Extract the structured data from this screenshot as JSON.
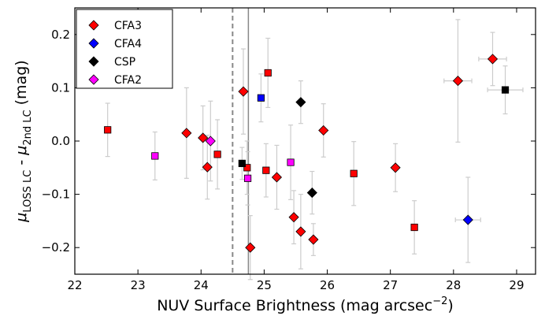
{
  "chart_data": {
    "type": "scatter",
    "xlabel_main": "NUV Surface Brightness (mag arcsec",
    "xlabel_exp": "−2",
    "xlabel_end": ")",
    "ylabel_mu": "μ",
    "ylabel_sub1": "LOSS LC",
    "ylabel_mid": " - ",
    "ylabel_sub2": "2nd LC",
    "ylabel_unit": " (mag)",
    "xlim": [
      22,
      29.3
    ],
    "ylim": [
      -0.25,
      0.25
    ],
    "xticks": [
      "22",
      "23",
      "24",
      "25",
      "26",
      "27",
      "28",
      "29"
    ],
    "yticks": [
      "−0.2",
      "−0.1",
      "0.0",
      "0.1",
      "0.2"
    ],
    "ytick_values": [
      -0.2,
      -0.1,
      0.0,
      0.1,
      0.2
    ],
    "vlines": [
      {
        "x": 24.5,
        "style": "dashed",
        "color": "#888888"
      },
      {
        "x": 24.75,
        "style": "solid",
        "color": "#888888"
      }
    ],
    "legend": [
      {
        "label": "CFA3",
        "color": "#ff0000"
      },
      {
        "label": "CFA4",
        "color": "#0000ff"
      },
      {
        "label": "CSP",
        "color": "#000000"
      },
      {
        "label": "CFA2",
        "color": "#ff00ff"
      }
    ],
    "series": [
      {
        "name": "CFA3",
        "color": "#ff0000",
        "points": [
          {
            "x": 22.52,
            "y": 0.021,
            "yerr": 0.05,
            "marker": "square"
          },
          {
            "x": 23.77,
            "y": 0.015,
            "yerr": 0.085,
            "marker": "diamond"
          },
          {
            "x": 24.03,
            "y": 0.006,
            "yerr": 0.06,
            "marker": "diamond"
          },
          {
            "x": 24.1,
            "y": -0.049,
            "yerr": 0.06,
            "marker": "diamond"
          },
          {
            "x": 24.26,
            "y": -0.025,
            "yerr": 0.065,
            "marker": "square"
          },
          {
            "x": 24.67,
            "y": 0.093,
            "yerr": 0.08,
            "marker": "diamond"
          },
          {
            "x": 24.73,
            "y": -0.05,
            "yerr": 0.05,
            "marker": "square"
          },
          {
            "x": 24.78,
            "y": -0.2,
            "yerr": 0.06,
            "marker": "diamond"
          },
          {
            "x": 25.03,
            "y": -0.055,
            "yerr": 0.05,
            "marker": "square"
          },
          {
            "x": 25.06,
            "y": 0.128,
            "yerr": 0.065,
            "marker": "square"
          },
          {
            "x": 25.2,
            "y": -0.068,
            "yerr": 0.06,
            "marker": "diamond"
          },
          {
            "x": 25.47,
            "y": -0.143,
            "yerr": 0.05,
            "marker": "diamond"
          },
          {
            "x": 25.58,
            "y": -0.17,
            "yerr": 0.07,
            "marker": "diamond"
          },
          {
            "x": 25.78,
            "y": -0.185,
            "yerr": 0.03,
            "marker": "diamond"
          },
          {
            "x": 25.94,
            "y": 0.02,
            "yerr": 0.05,
            "marker": "diamond"
          },
          {
            "x": 26.42,
            "y": -0.061,
            "yerr": 0.06,
            "marker": "square"
          },
          {
            "x": 27.08,
            "y": -0.05,
            "yerr": 0.045,
            "marker": "diamond"
          },
          {
            "x": 27.38,
            "y": -0.162,
            "yerr": 0.05,
            "marker": "square"
          },
          {
            "x": 28.07,
            "y": 0.113,
            "yerr": 0.115,
            "xerr": 0.22,
            "marker": "diamond"
          },
          {
            "x": 28.62,
            "y": 0.154,
            "yerr": 0.05,
            "xerr": 0.22,
            "marker": "diamond"
          }
        ]
      },
      {
        "name": "CFA4",
        "color": "#0000ff",
        "points": [
          {
            "x": 24.95,
            "y": 0.081,
            "yerr": 0.045,
            "marker": "square"
          },
          {
            "x": 28.23,
            "y": -0.148,
            "yerr": 0.08,
            "xerr": 0.2,
            "marker": "diamond"
          }
        ]
      },
      {
        "name": "CSP",
        "color": "#000000",
        "points": [
          {
            "x": 24.65,
            "y": -0.042,
            "yerr": 0.03,
            "marker": "square"
          },
          {
            "x": 25.58,
            "y": 0.073,
            "yerr": 0.04,
            "marker": "diamond"
          },
          {
            "x": 25.76,
            "y": -0.097,
            "yerr": 0.04,
            "marker": "diamond"
          },
          {
            "x": 28.82,
            "y": 0.096,
            "yerr": 0.045,
            "xerr": 0.28,
            "marker": "square"
          }
        ]
      },
      {
        "name": "CFA2",
        "color": "#ff00ff",
        "points": [
          {
            "x": 23.27,
            "y": -0.028,
            "yerr": 0.045,
            "marker": "square"
          },
          {
            "x": 24.15,
            "y": 0.0,
            "yerr": 0.075,
            "marker": "diamond"
          },
          {
            "x": 24.74,
            "y": -0.07,
            "yerr": 0.05,
            "marker": "square"
          },
          {
            "x": 25.42,
            "y": -0.04,
            "yerr": 0.07,
            "marker": "square"
          }
        ]
      }
    ]
  }
}
